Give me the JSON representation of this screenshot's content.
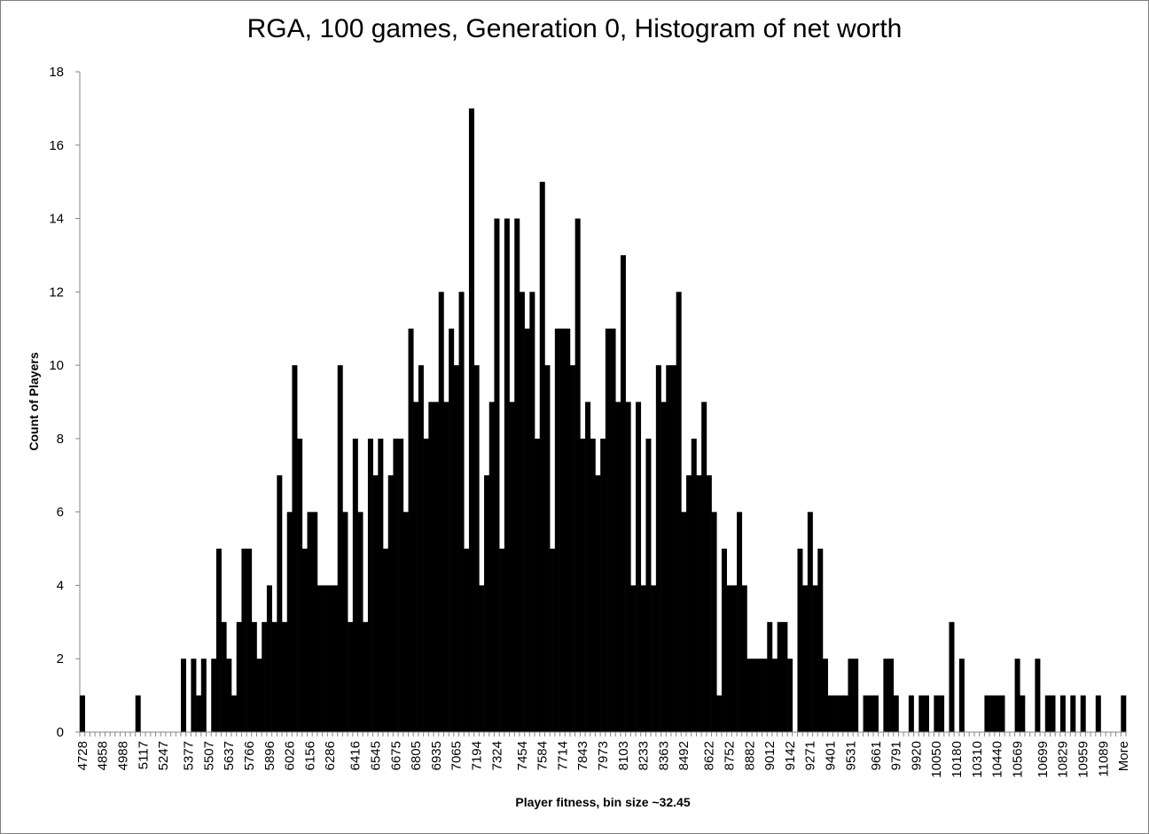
{
  "chart_data": {
    "type": "bar",
    "title": "RGA, 100 games, Generation 0, Histogram of net worth",
    "xlabel": "Player fitness, bin size ~32.45",
    "ylabel": "Count of Players",
    "ylim": [
      0,
      18
    ],
    "yticks": [
      0,
      2,
      4,
      6,
      8,
      10,
      12,
      14,
      16,
      18
    ],
    "grid": false,
    "legend": "none",
    "bar_color": "#000000",
    "x_tick_labels": [
      "4728",
      "4858",
      "4988",
      "5117",
      "5247",
      "5377",
      "5507",
      "5637",
      "5766",
      "5896",
      "6026",
      "6156",
      "6286",
      "6416",
      "6545",
      "6675",
      "6805",
      "6935",
      "7065",
      "7194",
      "7324",
      "7454",
      "7584",
      "7714",
      "7843",
      "7973",
      "8103",
      "8233",
      "8363",
      "8492",
      "8622",
      "8752",
      "8882",
      "9012",
      "9142",
      "9271",
      "9401",
      "9531",
      "9661",
      "9791",
      "9920",
      "10050",
      "10180",
      "10310",
      "10440",
      "10569",
      "10699",
      "10829",
      "10959",
      "11089",
      "More"
    ],
    "values": [
      1,
      0,
      0,
      0,
      0,
      0,
      0,
      0,
      0,
      0,
      0,
      1,
      0,
      0,
      0,
      0,
      0,
      0,
      0,
      0,
      2,
      0,
      2,
      1,
      2,
      0,
      2,
      5,
      3,
      2,
      1,
      3,
      5,
      5,
      3,
      2,
      3,
      4,
      3,
      7,
      3,
      6,
      10,
      8,
      5,
      6,
      6,
      4,
      4,
      4,
      4,
      10,
      6,
      3,
      8,
      6,
      3,
      8,
      7,
      8,
      5,
      7,
      8,
      8,
      6,
      11,
      9,
      10,
      8,
      9,
      9,
      12,
      9,
      11,
      10,
      12,
      5,
      17,
      10,
      4,
      7,
      9,
      14,
      5,
      14,
      9,
      14,
      12,
      11,
      12,
      8,
      15,
      10,
      5,
      11,
      11,
      11,
      10,
      14,
      8,
      9,
      8,
      7,
      8,
      11,
      11,
      9,
      13,
      9,
      4,
      9,
      4,
      8,
      4,
      10,
      9,
      10,
      10,
      12,
      6,
      7,
      8,
      7,
      9,
      7,
      6,
      1,
      5,
      4,
      4,
      6,
      4,
      2,
      2,
      2,
      2,
      3,
      2,
      3,
      3,
      2,
      0,
      5,
      4,
      6,
      4,
      5,
      2,
      1,
      1,
      1,
      1,
      2,
      2,
      0,
      1,
      1,
      1,
      0,
      2,
      2,
      1,
      0,
      0,
      1,
      0,
      1,
      1,
      0,
      1,
      1,
      0,
      3,
      0,
      2,
      0,
      0,
      0,
      0,
      1,
      1,
      1,
      1,
      0,
      0,
      2,
      1,
      0,
      0,
      2,
      0,
      1,
      1,
      0,
      1,
      0,
      1,
      0,
      1,
      0,
      0,
      1,
      0,
      0,
      0,
      0,
      1
    ]
  }
}
